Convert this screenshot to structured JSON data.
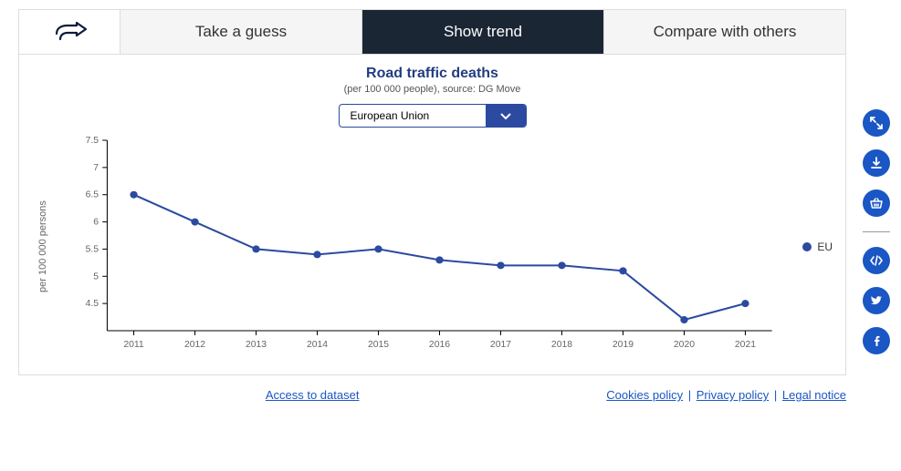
{
  "tabs": {
    "guess": "Take a guess",
    "trend": "Show trend",
    "compare": "Compare with others",
    "active": "trend"
  },
  "chart": {
    "title": "Road traffic deaths",
    "subtitle": "(per 100 000 people), source: DG Move",
    "selector_value": "European Union",
    "type": "line",
    "y_label": "per 100 000 persons",
    "legend_label": "EU",
    "years": [
      2011,
      2012,
      2013,
      2014,
      2015,
      2016,
      2017,
      2018,
      2019,
      2020,
      2021
    ],
    "values": [
      6.5,
      6.0,
      5.5,
      5.4,
      5.5,
      5.3,
      5.2,
      5.2,
      5.1,
      4.2,
      4.5
    ],
    "y_ticks": [
      4.5,
      5,
      5.5,
      6,
      6.5,
      7,
      7.5
    ],
    "ylim": [
      4.0,
      7.5
    ],
    "line_color": "#2b4aa0",
    "marker_color": "#2b4aa0",
    "axis_color": "#000000",
    "grid": false,
    "marker_radius": 4,
    "line_width": 2,
    "tick_fontsize": 10,
    "tick_color": "#666666",
    "background_color": "#ffffff"
  },
  "footer": {
    "dataset_link": "Access to dataset",
    "cookies": "Cookies policy",
    "privacy": "Privacy policy",
    "legal": "Legal notice"
  }
}
